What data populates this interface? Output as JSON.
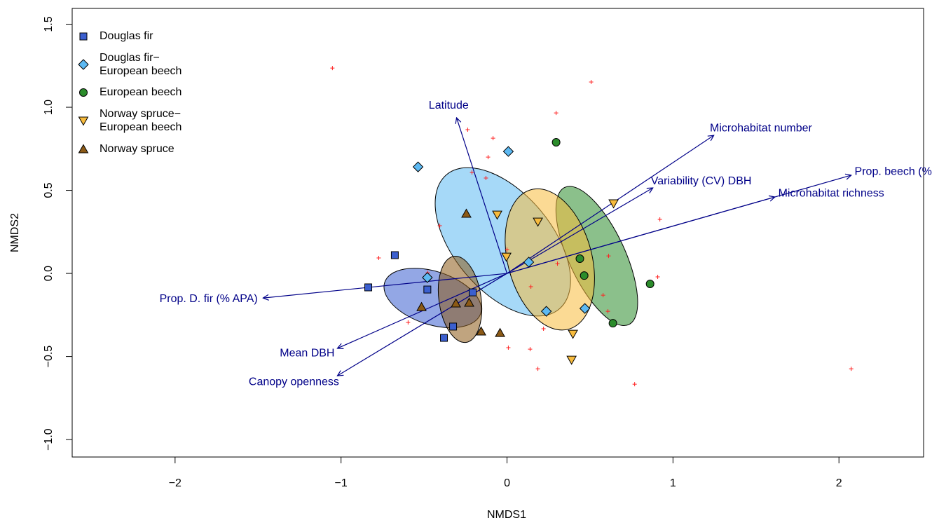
{
  "chart_data": {
    "type": "scatter",
    "xlabel": "NMDS1",
    "ylabel": "NMDS2",
    "xlim": [
      -2.62,
      2.51
    ],
    "ylim": [
      -1.105,
      1.595
    ],
    "xticks": [
      {
        "value": -2,
        "label": "−2"
      },
      {
        "value": -1,
        "label": "−1"
      },
      0,
      1,
      2
    ],
    "yticks": [
      {
        "value": -1,
        "label": "−1.0"
      },
      {
        "value": -0.5,
        "label": "−0.5"
      },
      {
        "value": 0,
        "label": "0.0"
      },
      0.5,
      {
        "value": 1,
        "label": "1.0"
      },
      1.5
    ],
    "series": [
      {
        "name": "Douglas fir",
        "color": "#3b5fcf",
        "marker": "square",
        "x": [
          -0.676,
          -0.836,
          -0.48,
          -0.207,
          -0.325,
          -0.38
        ],
        "y": [
          0.11,
          -0.084,
          -0.097,
          -0.114,
          -0.32,
          -0.388
        ],
        "ellipse": {
          "cx": -0.448,
          "cy": -0.148,
          "rx": 0.304,
          "ry": 0.16,
          "angle": -18
        }
      },
      {
        "name": "Douglas fir−\nEuropean beech",
        "color": "#5db9f2",
        "marker": "diamond",
        "x": [
          -0.536,
          0.008,
          -0.48,
          0.131,
          0.237,
          0.469
        ],
        "y": [
          0.641,
          0.734,
          -0.025,
          0.068,
          -0.228,
          -0.211
        ],
        "ellipse": {
          "cx": -0.025,
          "cy": 0.19,
          "rx": 0.528,
          "ry": 0.295,
          "angle": -50
        }
      },
      {
        "name": "European beech",
        "color": "#2b8c2b",
        "marker": "circle",
        "x": [
          0.296,
          0.439,
          0.465,
          0.862,
          0.638
        ],
        "y": [
          0.789,
          0.089,
          -0.013,
          -0.063,
          -0.3
        ],
        "ellipse": {
          "cx": 0.541,
          "cy": 0.105,
          "rx": 0.456,
          "ry": 0.169,
          "angle": -65
        }
      },
      {
        "name": "Norway spruce−\nEuropean beech",
        "color": "#f7bb3d",
        "marker": "triangle-down",
        "x": [
          -0.059,
          0.186,
          0.642,
          -0.004,
          0.397,
          0.389
        ],
        "y": [
          0.354,
          0.312,
          0.422,
          0.101,
          -0.363,
          -0.519
        ],
        "ellipse": {
          "cx": 0.258,
          "cy": 0.084,
          "rx": 0.435,
          "ry": 0.253,
          "angle": -75
        }
      },
      {
        "name": "Norway spruce",
        "color": "#8c5a16",
        "marker": "triangle-up",
        "x": [
          -0.245,
          -0.515,
          -0.308,
          -0.228,
          -0.156,
          -0.042
        ],
        "y": [
          0.359,
          -0.203,
          -0.181,
          -0.177,
          -0.35,
          -0.359
        ],
        "ellipse": {
          "cx": -0.283,
          "cy": -0.156,
          "rx": 0.262,
          "ry": 0.127,
          "angle": -82
        }
      }
    ],
    "species": {
      "color": "#ff2020",
      "x": [
        -1.052,
        0.507,
        0.296,
        -0.237,
        -0.084,
        -0.114,
        -0.211,
        -0.127,
        0.921,
        -0.405,
        -0.773,
        0,
        0.612,
        0.304,
        0.908,
        0.144,
        0.579,
        0.608,
        -0.596,
        0.22,
        0.008,
        0.139,
        0.186,
        0.769,
        2.074,
        -0.477
      ],
      "y": [
        1.236,
        1.152,
        0.966,
        0.865,
        0.814,
        0.7,
        0.608,
        0.574,
        0.325,
        0.287,
        0.093,
        0.143,
        0.105,
        0.059,
        -0.021,
        -0.08,
        -0.131,
        -0.228,
        -0.295,
        -0.333,
        -0.447,
        -0.456,
        -0.574,
        -0.667,
        -0.574,
        0.004
      ]
    },
    "vector_color": "#000088",
    "vectors": [
      {
        "label": "Latitude",
        "x": -0.304,
        "y": 0.937
      },
      {
        "label": "Microhabitat number",
        "x": 1.246,
        "y": 0.831
      },
      {
        "label": "Variability (CV) DBH",
        "x": 0.879,
        "y": 0.515
      },
      {
        "label": "Prop. beech (% APA)",
        "x": 2.074,
        "y": 0.591
      },
      {
        "label": "Microhabitat richness",
        "x": 1.614,
        "y": 0.46
      },
      {
        "label": "Prop. D. fir (% APA)",
        "x": -1.47,
        "y": -0.148
      },
      {
        "label": "Mean DBH",
        "x": -1.022,
        "y": -0.451
      },
      {
        "label": "Canopy openness",
        "x": -1.022,
        "y": -0.616
      }
    ]
  }
}
